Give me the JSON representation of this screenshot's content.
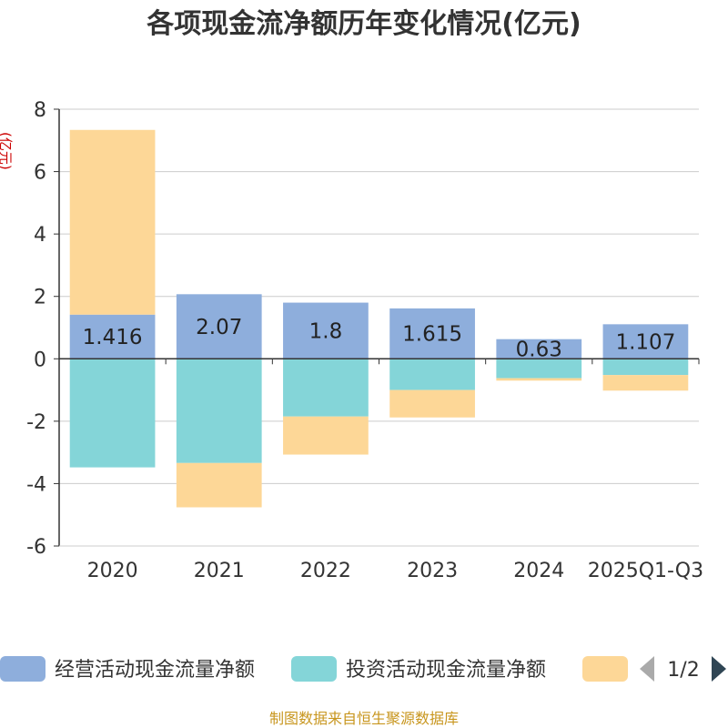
{
  "chart_data": {
    "type": "bar",
    "stacked": true,
    "title": "各项现金流净额历年变化情况(亿元)",
    "ylabel": "(亿元)",
    "xlabel": "",
    "ylim": [
      -6,
      8
    ],
    "yticks": [
      8,
      6,
      4,
      2,
      0,
      -2,
      -4,
      -6
    ],
    "grid": true,
    "categories": [
      "2020",
      "2021",
      "2022",
      "2023",
      "2024",
      "2025Q1-Q3"
    ],
    "series": [
      {
        "name": "经营活动现金流量净额",
        "color": "#8eaedc",
        "values": [
          1.416,
          2.07,
          1.8,
          1.615,
          0.63,
          1.107
        ],
        "labels": [
          "1.416",
          "2.07",
          "1.8",
          "1.615",
          "0.63",
          "1.107"
        ]
      },
      {
        "name": "投资活动现金流量净额",
        "color": "#84d5d8",
        "values": [
          -3.48,
          -3.34,
          -1.85,
          -1.0,
          -0.62,
          -0.52
        ]
      },
      {
        "name": "",
        "color": "#fdd797",
        "values": [
          5.92,
          -1.42,
          -1.22,
          -0.88,
          -0.08,
          -0.5
        ]
      }
    ],
    "legend": {
      "position": "bottom",
      "page": "1/2"
    },
    "source": "制图数据来自恒生聚源数据库"
  }
}
